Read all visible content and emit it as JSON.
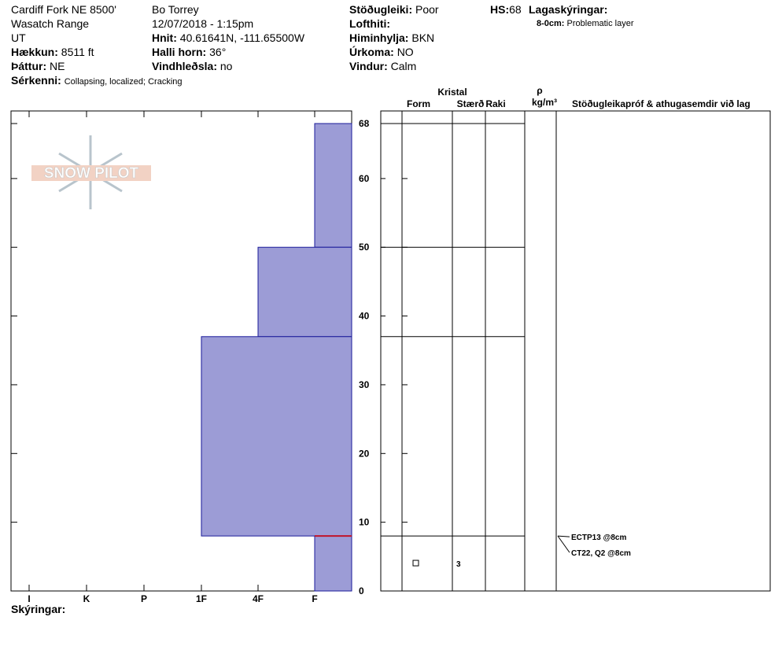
{
  "header": {
    "location": "Cardiff Fork NE 8500'",
    "range": "Wasatch Range",
    "state": "UT",
    "elevation_label": "Hækkun:",
    "elevation": "8511 ft",
    "aspect_label": "Þáttur:",
    "aspect": "NE",
    "features_label": "Sérkenni:",
    "features": "Collapsing, localized;  Cracking",
    "observer": "Bo Torrey",
    "datetime": "12/07/2018 - 1:15pm",
    "coords_label": "Hnit:",
    "coords": "40.61641N, -111.65500W",
    "slope_label": "Halli horn:",
    "slope": "36°",
    "wind_loading_label": "Vindhleðsla:",
    "wind_loading": "no",
    "stability_label": "Stöðugleiki:",
    "stability": "Poor",
    "air_temp_label": "Lofthiti:",
    "sky_label": "Himinhylja:",
    "sky": "BKN",
    "precip_label": "Úrkoma:",
    "precip": "NO",
    "wind_label": "Vindur:",
    "wind": "Calm",
    "hs_label": "HS:",
    "hs": 68,
    "legend_label": "Lagaskýringar:",
    "legend_range": "8-0cm:",
    "legend_text": "Problematic layer"
  },
  "logo": "SNOW PILOT",
  "profile": {
    "ylim": [
      0,
      68
    ],
    "yticks": [
      0,
      10,
      20,
      30,
      40,
      50,
      60,
      68
    ],
    "hardness_labels": [
      "I",
      "K",
      "P",
      "1F",
      "4F",
      "F"
    ],
    "layers": [
      {
        "top": 68,
        "bottom": 50,
        "hardness": "F"
      },
      {
        "top": 50,
        "bottom": 37,
        "hardness": "4F"
      },
      {
        "top": 37,
        "bottom": 8,
        "hardness": "1F"
      },
      {
        "top": 8,
        "bottom": 0,
        "hardness": "F"
      }
    ],
    "problematic_layer": 8
  },
  "columns": {
    "crystal": "Kristal",
    "form": "Form",
    "size": "Stærð",
    "moisture": "Raki",
    "density_symbol": "ρ",
    "density_unit": "kg/m³",
    "tests_header": "Stöðugleikapróf & athugasemdir við lag"
  },
  "crystals": [
    {
      "height": 4,
      "size": 3
    }
  ],
  "tests": [
    "ECTP13 @8cm",
    "CT22, Q2 @8cm"
  ],
  "notes_label": "Skýringar:"
}
